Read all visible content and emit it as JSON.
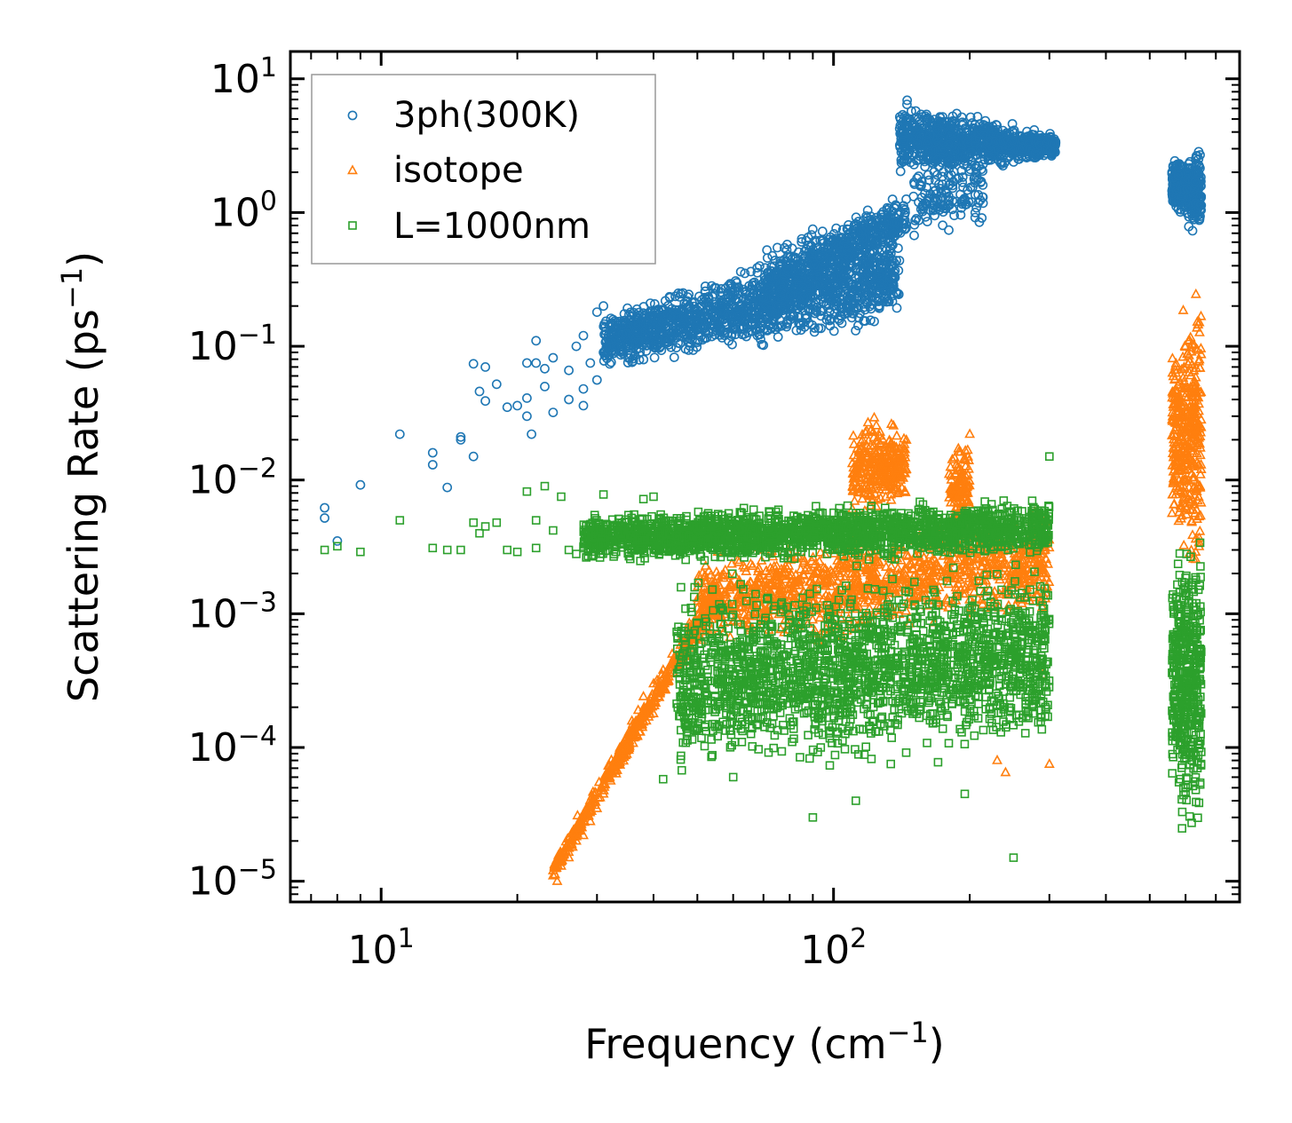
{
  "chart_data": {
    "type": "scatter",
    "xscale": "log",
    "yscale": "log",
    "xlim": [
      6.3,
      790
    ],
    "ylim": [
      7e-06,
      16
    ],
    "xlabel": "Frequency (cm",
    "xlabel_sup": "−1",
    "xlabel_close": ")",
    "ylabel": "Scattering Rate (ps",
    "ylabel_sup": "−1",
    "ylabel_close": ")",
    "x_ticks": [
      {
        "value": 10,
        "base": "10",
        "exp": "1"
      },
      {
        "value": 100,
        "base": "10",
        "exp": "2"
      }
    ],
    "y_ticks": [
      {
        "value": 10,
        "base": "10",
        "exp": "1"
      },
      {
        "value": 1,
        "base": "10",
        "exp": "0"
      },
      {
        "value": 0.1,
        "base": "10",
        "exp": "−1"
      },
      {
        "value": 0.01,
        "base": "10",
        "exp": "−2"
      },
      {
        "value": 0.001,
        "base": "10",
        "exp": "−3"
      },
      {
        "value": 0.0001,
        "base": "10",
        "exp": "−4"
      },
      {
        "value": 1e-05,
        "base": "10",
        "exp": "−5"
      }
    ],
    "legend": {
      "position": "top-left"
    },
    "series": [
      {
        "name": "3ph(300K)",
        "marker": "circle",
        "color": "#1f77b4",
        "points": [
          [
            7.5,
            0.0062
          ],
          [
            7.5,
            0.0052
          ],
          [
            8,
            0.0035
          ],
          [
            9,
            0.0092
          ],
          [
            11,
            0.022
          ],
          [
            13,
            0.016
          ],
          [
            13,
            0.013
          ],
          [
            14,
            0.0088
          ],
          [
            15,
            0.02
          ],
          [
            15,
            0.021
          ],
          [
            16,
            0.015
          ],
          [
            16,
            0.074
          ],
          [
            16.5,
            0.046
          ],
          [
            17,
            0.039
          ],
          [
            17,
            0.07
          ],
          [
            18,
            0.052
          ],
          [
            19,
            0.035
          ],
          [
            20,
            0.036
          ],
          [
            21,
            0.03
          ],
          [
            21,
            0.041
          ],
          [
            21,
            0.075
          ],
          [
            21.5,
            0.022
          ],
          [
            22,
            0.075
          ],
          [
            22,
            0.11
          ],
          [
            23,
            0.05
          ],
          [
            23,
            0.068
          ],
          [
            24,
            0.032
          ],
          [
            24,
            0.082
          ],
          [
            26,
            0.04
          ],
          [
            26,
            0.066
          ],
          [
            27,
            0.1
          ],
          [
            28,
            0.036
          ],
          [
            28,
            0.048
          ],
          [
            28,
            0.12
          ],
          [
            29,
            0.075
          ],
          [
            30,
            0.056
          ],
          [
            30,
            0.18
          ],
          [
            31,
            0.09
          ],
          [
            31,
            0.2
          ]
        ],
        "bands": [
          {
            "x": [
              31,
              140
            ],
            "ylo": [
              0.06,
              0.13
            ],
            "yhi": [
              0.2,
              0.9
            ],
            "n": 1500
          },
          {
            "x": [
              70,
              145
            ],
            "ylo": [
              0.12,
              0.6
            ],
            "yhi": [
              0.6,
              1.5
            ],
            "n": 550
          },
          {
            "x": [
              140,
              310
            ],
            "ylo": [
              1.5,
              2.5
            ],
            "yhi": [
              8,
              4
            ],
            "n": 950
          },
          {
            "x": [
              150,
              215
            ],
            "ylo": [
              0.6,
              0.7
            ],
            "yhi": [
              2.5,
              3
            ],
            "n": 140
          },
          {
            "x": [
              560,
              650
            ],
            "ylo": [
              1.0,
              0.6
            ],
            "yhi": [
              2.6,
              3.2
            ],
            "n": 380
          }
        ]
      },
      {
        "name": "isotope",
        "marker": "triangle",
        "color": "#ff7f0e",
        "points": [
          [
            24,
            1.1e-05
          ],
          [
            24.5,
            1e-05
          ],
          [
            24,
            1.2e-05
          ],
          [
            25,
            1.3e-05
          ],
          [
            26,
            1.5e-05
          ],
          [
            26.5,
            1.8e-05
          ],
          [
            27,
            2e-05
          ],
          [
            28,
            2.2e-05
          ],
          [
            29,
            2.8e-05
          ],
          [
            30,
            3.5e-05
          ],
          [
            31,
            4.5e-05
          ],
          [
            32,
            6e-05
          ],
          [
            33,
            7.5e-05
          ],
          [
            34,
            9.5e-05
          ],
          [
            35,
            0.00012
          ],
          [
            36,
            0.00015
          ],
          [
            37,
            0.00019
          ],
          [
            38,
            0.00024
          ],
          [
            40,
            0.0003
          ],
          [
            42,
            0.00038
          ],
          [
            44,
            0.0005
          ],
          [
            46,
            0.00065
          ],
          [
            48,
            0.00085
          ],
          [
            50,
            0.0011
          ],
          [
            200,
            0.022
          ],
          [
            230,
            8e-05
          ],
          [
            240,
            6.5e-05
          ],
          [
            290,
            0.00035
          ],
          [
            300,
            7.5e-05
          ]
        ],
        "bands": [
          {
            "x": [
              24,
              55
            ],
            "ylo": [
              1e-05,
              0.001
            ],
            "yhi": [
              1.5e-05,
              0.002
            ],
            "n": 500
          },
          {
            "x": [
              50,
              300
            ],
            "ylo": [
              0.0005,
              0.0008
            ],
            "yhi": [
              0.003,
              0.008
            ],
            "n": 1200
          },
          {
            "x": [
              110,
              145
            ],
            "ylo": [
              0.004,
              0.006
            ],
            "yhi": [
              0.035,
              0.03
            ],
            "n": 300
          },
          {
            "x": [
              180,
              200
            ],
            "ylo": [
              0.003,
              0.004
            ],
            "yhi": [
              0.02,
              0.025
            ],
            "n": 120
          },
          {
            "x": [
              560,
              650
            ],
            "ylo": [
              0.003,
              0.001
            ],
            "yhi": [
              0.15,
              0.5
            ],
            "n": 380
          }
        ]
      },
      {
        "name": "L=1000nm",
        "marker": "square",
        "color": "#2ca02c",
        "points": [
          [
            7.5,
            0.003
          ],
          [
            8,
            0.0032
          ],
          [
            9,
            0.0029
          ],
          [
            11,
            0.005
          ],
          [
            13,
            0.0031
          ],
          [
            14,
            0.003
          ],
          [
            15,
            0.003
          ],
          [
            16,
            0.0048
          ],
          [
            16.5,
            0.004
          ],
          [
            17,
            0.0045
          ],
          [
            18,
            0.0048
          ],
          [
            19,
            0.003
          ],
          [
            20,
            0.0029
          ],
          [
            21,
            0.0082
          ],
          [
            22,
            0.005
          ],
          [
            22,
            0.0031
          ],
          [
            23,
            0.009
          ],
          [
            24,
            0.0042
          ],
          [
            25,
            0.0075
          ],
          [
            26,
            0.003
          ],
          [
            27,
            0.0028
          ],
          [
            29,
            0.0045
          ],
          [
            31,
            0.0078
          ],
          [
            38,
            0.0072
          ],
          [
            40,
            0.0075
          ],
          [
            42,
            5.8e-05
          ],
          [
            60,
            6e-05
          ],
          [
            90,
            3e-05
          ],
          [
            112,
            4e-05
          ],
          [
            195,
            4.5e-05
          ],
          [
            250,
            1.5e-05
          ],
          [
            300,
            0.015
          ]
        ],
        "bands": [
          {
            "x": [
              28,
              300
            ],
            "ylo": [
              0.0022,
              0.0025
            ],
            "yhi": [
              0.006,
              0.008
            ],
            "n": 2000
          },
          {
            "x": [
              45,
              300
            ],
            "ylo": [
              5e-05,
              8e-05
            ],
            "yhi": [
              0.002,
              0.003
            ],
            "n": 2000
          },
          {
            "x": [
              560,
              650
            ],
            "ylo": [
              3e-05,
              1e-05
            ],
            "yhi": [
              0.004,
              0.008
            ],
            "n": 450
          }
        ]
      }
    ]
  }
}
